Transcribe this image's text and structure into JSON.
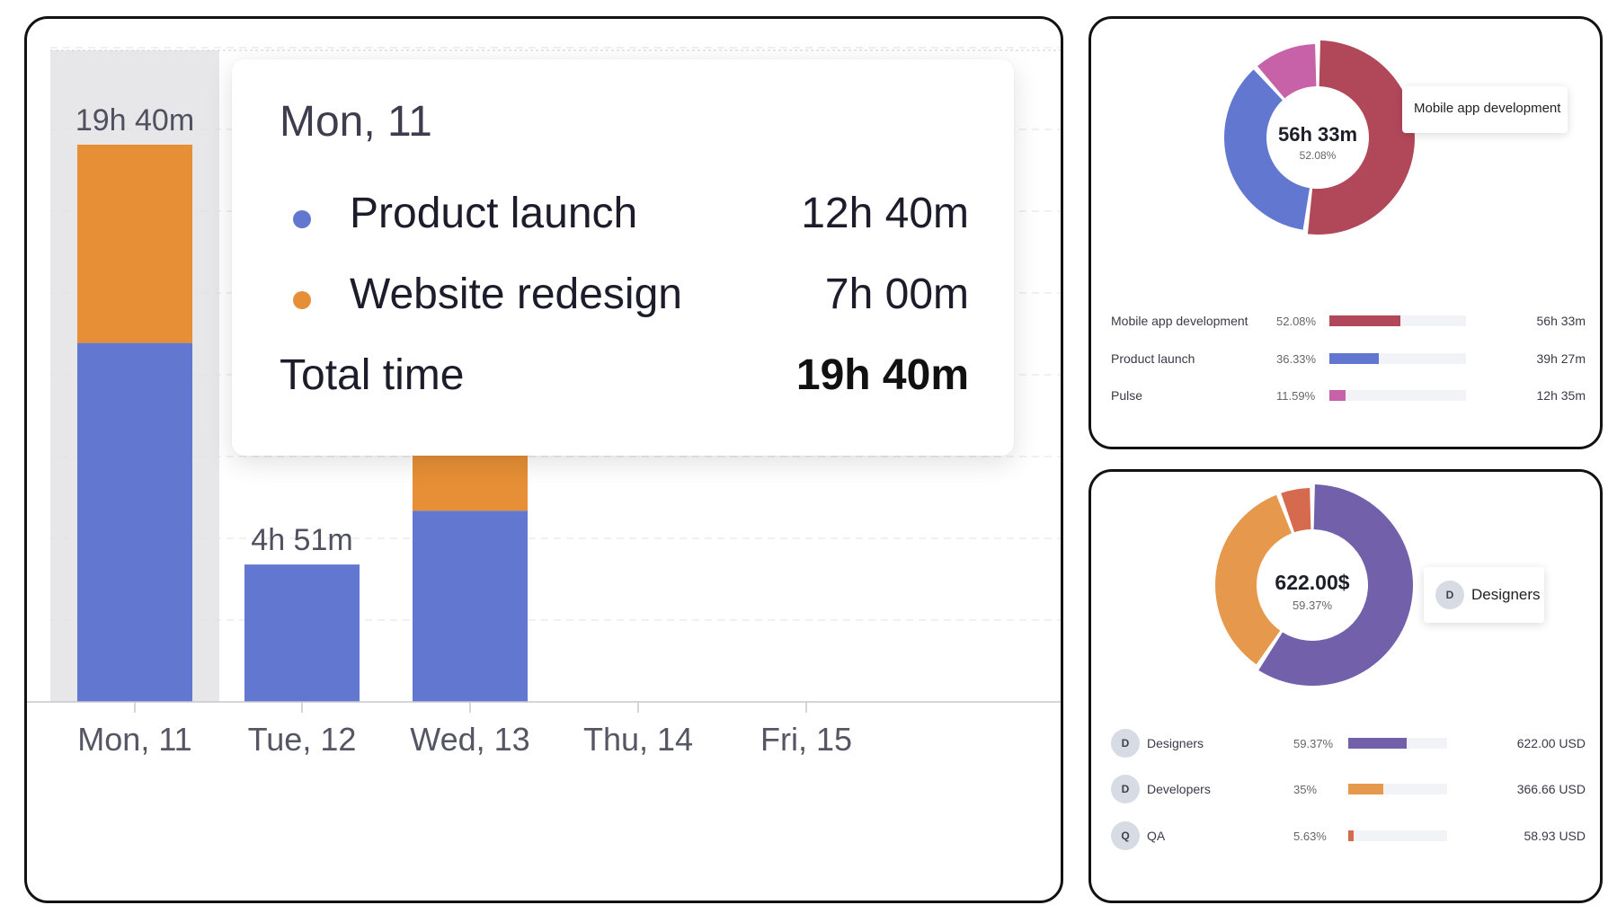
{
  "bar_chart": {
    "chart_data": {
      "type": "bar",
      "stacked": true,
      "categories": [
        "Mon, 11",
        "Tue, 12",
        "Wed, 13",
        "Thu, 14",
        "Fri, 15"
      ],
      "series": [
        {
          "name": "Product launch",
          "color": "#6277cf",
          "values_hours": [
            12.67,
            4.85,
            6.75,
            0,
            0
          ]
        },
        {
          "name": "Website redesign",
          "color": "#e68f36",
          "values_hours": [
            7.0,
            0,
            3.6,
            0,
            0
          ]
        }
      ],
      "bar_labels": [
        "19h 40m",
        "4h 51m",
        "",
        "",
        ""
      ],
      "ylim": [
        0,
        23
      ]
    },
    "highlighted_index": 0,
    "tooltip": {
      "title": "Mon, 11",
      "rows": [
        {
          "label": "Product launch",
          "value": "12h 40m",
          "color": "#6277cf"
        },
        {
          "label": "Website redesign",
          "value": "7h 00m",
          "color": "#e68f36"
        }
      ],
      "total_label": "Total time",
      "total_value": "19h 40m"
    }
  },
  "time_donut": {
    "chart_data": {
      "type": "pie",
      "donut": true,
      "slices": [
        {
          "label": "Mobile app development",
          "percent": 52.08,
          "value": "56h 33m",
          "color": "#b0485a"
        },
        {
          "label": "Product launch",
          "percent": 36.33,
          "value": "39h 27m",
          "color": "#6277cf"
        },
        {
          "label": "Pulse",
          "percent": 11.59,
          "value": "12h 35m",
          "color": "#c762a8"
        }
      ]
    },
    "center_value": "56h 33m",
    "center_percent": "52.08%",
    "tooltip": "Mobile app development",
    "legend": [
      {
        "name": "Mobile app development",
        "pct": "52.08%",
        "value": "56h 33m"
      },
      {
        "name": "Product launch",
        "pct": "36.33%",
        "value": "39h 27m"
      },
      {
        "name": "Pulse",
        "pct": "11.59%",
        "value": "12h 35m"
      }
    ]
  },
  "cost_donut": {
    "chart_data": {
      "type": "pie",
      "donut": true,
      "slices": [
        {
          "label": "Designers",
          "percent": 59.37,
          "value": "622.00 USD",
          "color": "#7260ab"
        },
        {
          "label": "Developers",
          "percent": 35,
          "value": "366.66 USD",
          "color": "#e6994c"
        },
        {
          "label": "QA",
          "percent": 5.63,
          "value": "58.93 USD",
          "color": "#d66a4e"
        }
      ]
    },
    "center_value": "622.00$",
    "center_percent": "59.37%",
    "tooltip": {
      "avatar": "D",
      "label": "Designers"
    },
    "legend": [
      {
        "avatar": "D",
        "name": "Designers",
        "pct": "59.37%",
        "value": "622.00 USD"
      },
      {
        "avatar": "D",
        "name": "Developers",
        "pct": "35%",
        "value": "366.66 USD"
      },
      {
        "avatar": "Q",
        "name": "QA",
        "pct": "5.63%",
        "value": "58.93 USD"
      }
    ]
  }
}
